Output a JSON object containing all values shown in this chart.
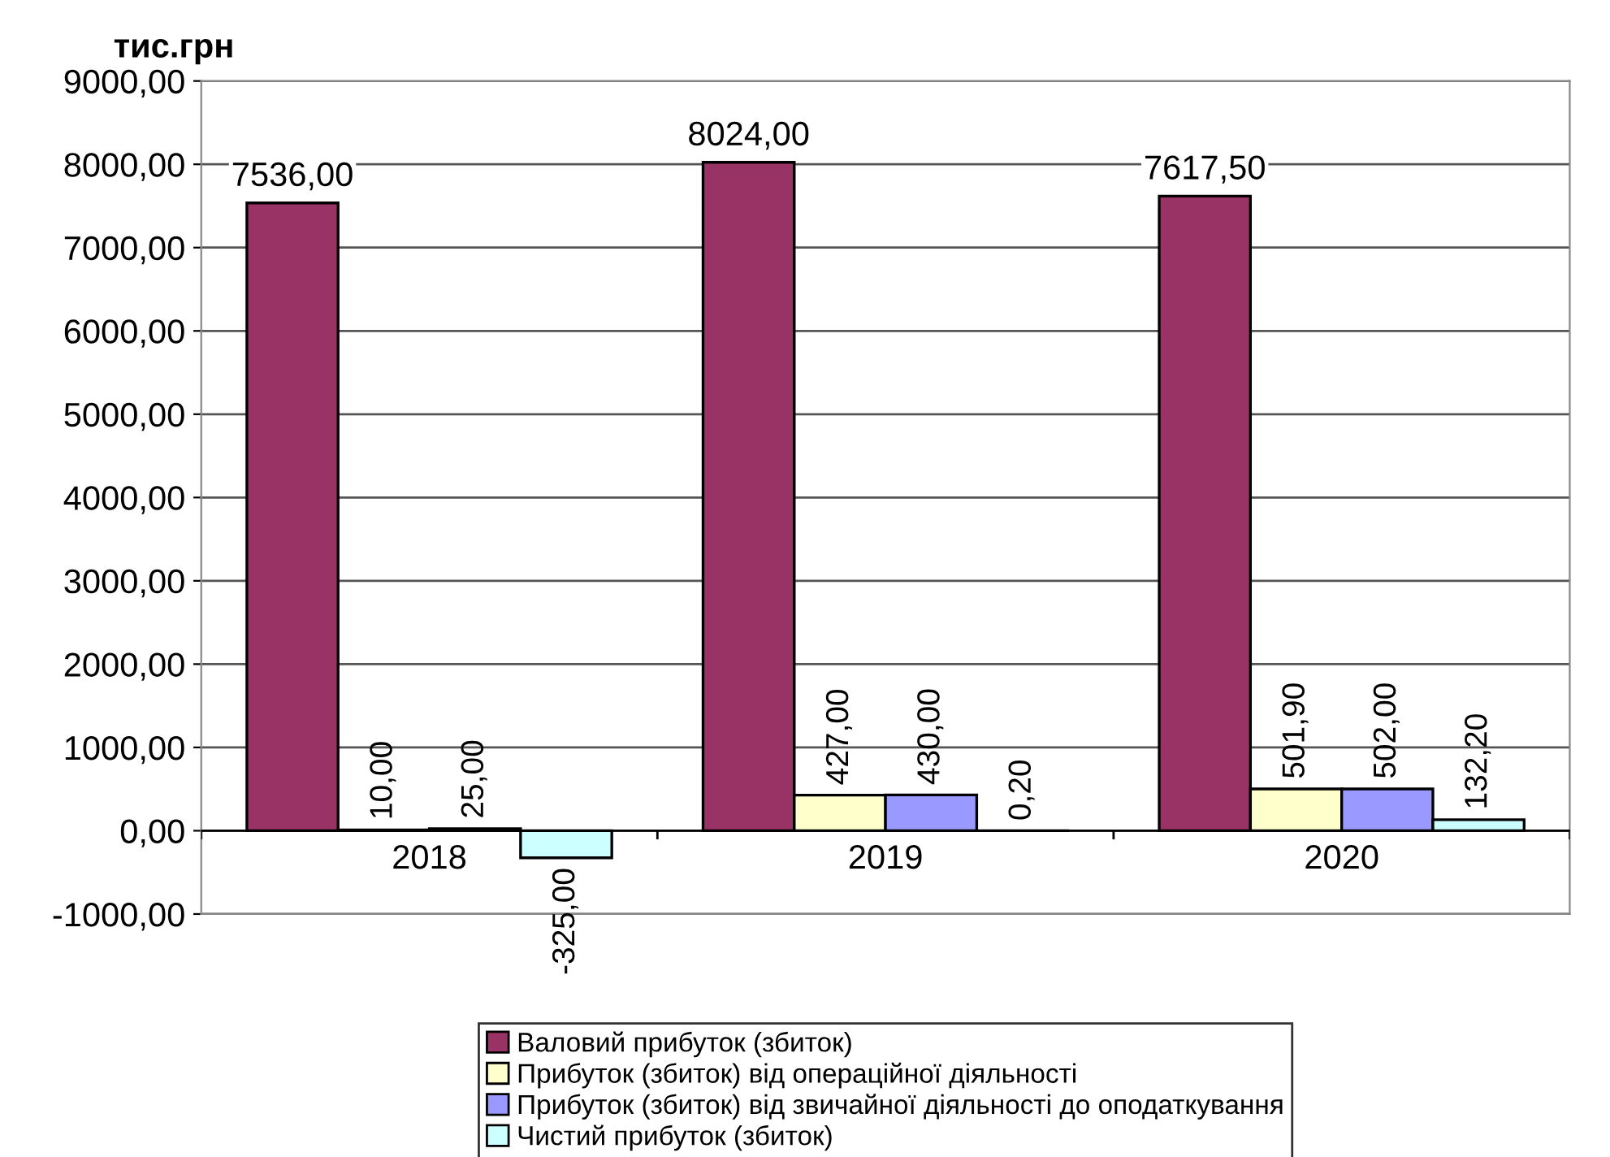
{
  "chart_data": {
    "type": "bar",
    "ylabel": "тис.грн",
    "categories": [
      "2018",
      "2019",
      "2020"
    ],
    "series": [
      {
        "name": "Валовий прибуток (збиток)",
        "color": "#993366",
        "values": [
          7536.0,
          8024.0,
          7617.5
        ],
        "value_labels": [
          "7536,00",
          "8024,00",
          "7617,50"
        ]
      },
      {
        "name": "Прибуток (збиток) від операційної діяльності",
        "color": "#ffffcc",
        "values": [
          10.0,
          427.0,
          501.9
        ],
        "value_labels": [
          "10,00",
          "427,00",
          "501,90"
        ]
      },
      {
        "name": "Прибуток (збиток) від звичайної діяльності до оподаткування",
        "color": "#9999ff",
        "values": [
          25.0,
          430.0,
          502.0
        ],
        "value_labels": [
          "25,00",
          "430,00",
          "502,00"
        ]
      },
      {
        "name": "Чистий прибуток (збиток)",
        "color": "#ccffff",
        "values": [
          -325.0,
          0.2,
          132.2
        ],
        "value_labels": [
          "-325,00",
          "0,20",
          "132,20"
        ]
      }
    ],
    "ylim": [
      -1000,
      9000
    ],
    "yticks": [
      {
        "value": -1000,
        "label": "-1000,00"
      },
      {
        "value": 0,
        "label": "0,00"
      },
      {
        "value": 1000,
        "label": "1000,00"
      },
      {
        "value": 2000,
        "label": "2000,00"
      },
      {
        "value": 3000,
        "label": "3000,00"
      },
      {
        "value": 4000,
        "label": "4000,00"
      },
      {
        "value": 5000,
        "label": "5000,00"
      },
      {
        "value": 6000,
        "label": "6000,00"
      },
      {
        "value": 7000,
        "label": "7000,00"
      },
      {
        "value": 8000,
        "label": "8000,00"
      },
      {
        "value": 9000,
        "label": "9000,00"
      }
    ],
    "grid": "y",
    "legend": "bottom"
  }
}
